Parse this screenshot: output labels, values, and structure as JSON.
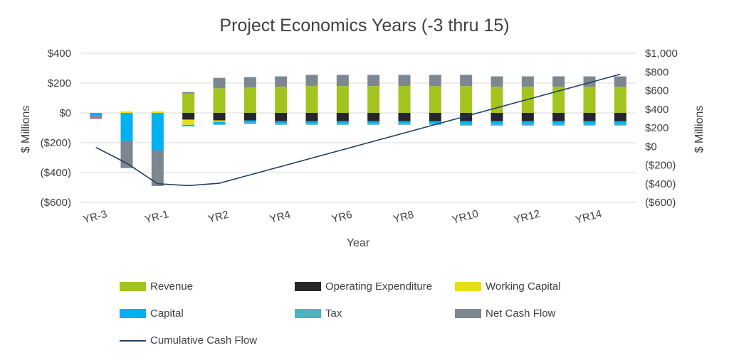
{
  "title": "Project Economics Years (-3 thru 15)",
  "chart_data": {
    "type": "combo-stacked-bar-line",
    "title": "Project Economics Years (-3 thru 15)",
    "xlabel": "Year",
    "ylabel_left": "$ Millions",
    "ylabel_right": "$ Millions",
    "grid": true,
    "legend_position": "bottom",
    "categories": [
      "YR-3",
      "YR-2",
      "YR-1",
      "YR1",
      "YR2",
      "YR3",
      "YR4",
      "YR5",
      "YR6",
      "YR7",
      "YR8",
      "YR9",
      "YR10",
      "YR11",
      "YR12",
      "YR13",
      "YR14",
      "YR15"
    ],
    "x_tick_labels": [
      "YR-3",
      "YR-1",
      "YR2",
      "YR4",
      "YR6",
      "YR8",
      "YR10",
      "YR12",
      "YR14"
    ],
    "left_axis": {
      "min": -600,
      "max": 400,
      "tick_values": [
        400,
        200,
        0,
        -200,
        -400,
        -600
      ],
      "tick_labels": [
        "$400",
        "$200",
        "$0",
        "($200)",
        "($400)",
        "($600)"
      ]
    },
    "right_axis": {
      "min": -600,
      "max": 1000,
      "tick_values": [
        1000,
        800,
        600,
        400,
        200,
        0,
        -200,
        -400,
        -600
      ],
      "tick_labels": [
        "$1,000",
        "$800",
        "$600",
        "$400",
        "$200",
        "$0",
        "($200)",
        "($400)",
        "($600)"
      ]
    },
    "bar_series": [
      {
        "name": "Revenue",
        "color": "#A3C41F",
        "values": [
          0,
          0,
          0,
          130,
          165,
          170,
          175,
          180,
          180,
          180,
          180,
          180,
          180,
          175,
          175,
          175,
          175,
          175
        ]
      },
      {
        "name": "Operating Expenditure",
        "color": "#262626",
        "values": [
          0,
          0,
          0,
          -45,
          -50,
          -50,
          -55,
          -55,
          -55,
          -55,
          -55,
          -55,
          -55,
          -55,
          -55,
          -55,
          -55,
          -55
        ]
      },
      {
        "name": "Working Capital",
        "color": "#E7DF16",
        "values": [
          0,
          10,
          10,
          -35,
          -10,
          0,
          0,
          0,
          0,
          0,
          0,
          0,
          0,
          0,
          0,
          0,
          0,
          0
        ]
      },
      {
        "name": "Capital",
        "color": "#00B0F0",
        "values": [
          -20,
          -190,
          -250,
          -10,
          -15,
          -15,
          -15,
          -15,
          -15,
          -15,
          -15,
          -15,
          -20,
          -20,
          -20,
          -20,
          -20,
          -20
        ]
      },
      {
        "name": "Tax",
        "color": "#4FB3BF",
        "values": [
          0,
          0,
          0,
          0,
          -5,
          -10,
          -10,
          -10,
          -10,
          -10,
          -10,
          -10,
          -10,
          -10,
          -10,
          -10,
          -10,
          -10
        ]
      },
      {
        "name": "Net Cash Flow",
        "color": "#7D8790",
        "values": [
          -20,
          -180,
          -240,
          10,
          70,
          70,
          70,
          75,
          75,
          75,
          75,
          75,
          75,
          70,
          70,
          70,
          70,
          70
        ]
      }
    ],
    "line_series": {
      "name": "Cumulative Cash Flow",
      "color": "#1F3F60",
      "axis": "right",
      "values": [
        -10,
        -180,
        -400,
        -420,
        -395,
        -305,
        -215,
        -125,
        -35,
        55,
        145,
        235,
        325,
        415,
        505,
        595,
        685,
        775
      ]
    }
  },
  "legend": {
    "items": [
      {
        "label": "Revenue",
        "color": "#A3C41F",
        "type": "box"
      },
      {
        "label": "Operating Expenditure",
        "color": "#262626",
        "type": "box"
      },
      {
        "label": "Working Capital",
        "color": "#E7DF16",
        "type": "box"
      },
      {
        "label": "Capital",
        "color": "#00B0F0",
        "type": "box"
      },
      {
        "label": "Tax",
        "color": "#4FB3BF",
        "type": "box"
      },
      {
        "label": "Net Cash Flow",
        "color": "#7D8790",
        "type": "box"
      },
      {
        "label": "Cumulative Cash Flow",
        "color": "#1F3F60",
        "type": "line"
      }
    ]
  }
}
